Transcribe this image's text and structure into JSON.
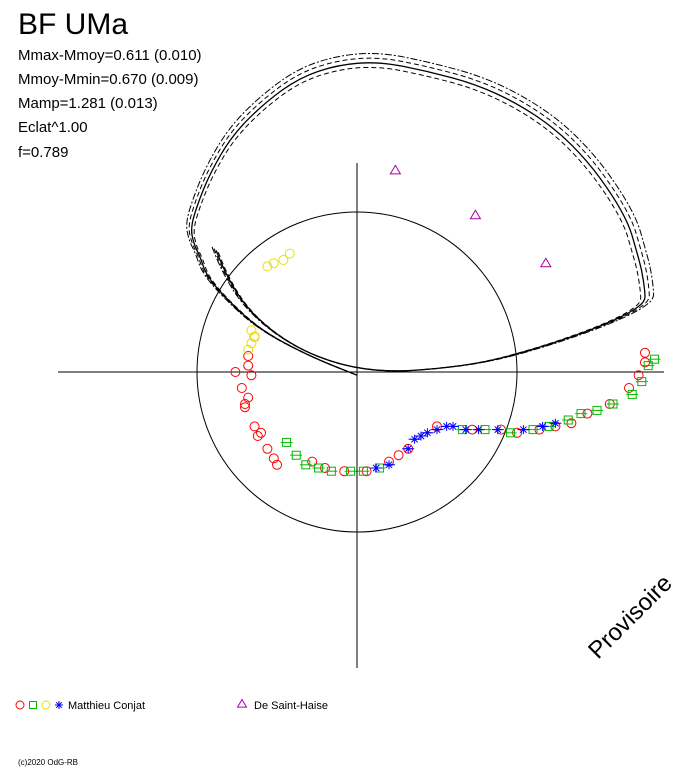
{
  "chart_data": {
    "type": "scatter",
    "title": "BF UMa",
    "stats": [
      "Mmax-Mmoy=0.611 (0.010)",
      "Mmoy-Mmin=0.670 (0.009)",
      "Mamp=1.281 (0.013)",
      "Eclat^1.00",
      "f=0.789"
    ],
    "watermark": "Provisoire",
    "copyright": "(c)2020 OdG-RB",
    "legend": [
      {
        "label": "Matthieu Conjat",
        "markers": [
          "circle",
          "square",
          "circle",
          "star"
        ],
        "colors": [
          "#ff0000",
          "#00bb00",
          "#e8e000",
          "#0000ff"
        ]
      },
      {
        "label": "De Saint-Haise",
        "markers": [
          "triangle"
        ],
        "colors": [
          "#aa00aa"
        ]
      }
    ],
    "reference_circle": {
      "radius": 0.5
    },
    "fit_curve": [
      [
        -0.44,
        0.38
      ],
      [
        -0.41,
        0.3
      ],
      [
        -0.33,
        0.18
      ],
      [
        -0.2,
        0.08
      ],
      [
        -0.05,
        0.02
      ],
      [
        0.1,
        0.0
      ],
      [
        0.25,
        0.01
      ],
      [
        0.4,
        0.03
      ],
      [
        0.55,
        0.07
      ],
      [
        0.7,
        0.12
      ],
      [
        0.8,
        0.16
      ],
      [
        0.86,
        0.19
      ],
      [
        0.9,
        0.22
      ],
      [
        0.9,
        0.25
      ],
      [
        0.89,
        0.32
      ],
      [
        0.87,
        0.39
      ],
      [
        0.85,
        0.46
      ],
      [
        0.8,
        0.55
      ],
      [
        0.72,
        0.66
      ],
      [
        0.62,
        0.76
      ],
      [
        0.5,
        0.84
      ],
      [
        0.37,
        0.9
      ],
      [
        0.22,
        0.94
      ],
      [
        0.07,
        0.97
      ],
      [
        -0.06,
        0.96
      ],
      [
        -0.18,
        0.92
      ],
      [
        -0.29,
        0.84
      ],
      [
        -0.39,
        0.74
      ],
      [
        -0.46,
        0.62
      ],
      [
        -0.5,
        0.52
      ],
      [
        -0.52,
        0.45
      ],
      [
        -0.51,
        0.4
      ],
      [
        -0.49,
        0.36
      ],
      [
        -0.47,
        0.3
      ],
      [
        -0.4,
        0.22
      ],
      [
        -0.3,
        0.13
      ],
      [
        -0.15,
        0.05
      ],
      [
        0.0,
        -0.01
      ]
    ],
    "series": [
      {
        "name": "Matthieu Conjat",
        "marker": "circle",
        "color": "#ff0000",
        "points": [
          [
            -0.35,
            -0.11
          ],
          [
            -0.32,
            -0.17
          ],
          [
            -0.28,
            -0.24
          ],
          [
            -0.26,
            -0.27
          ],
          [
            -0.3,
            -0.19
          ],
          [
            -0.34,
            -0.08
          ],
          [
            -0.36,
            -0.05
          ],
          [
            -0.38,
            0.0
          ],
          [
            -0.35,
            -0.1
          ],
          [
            -0.31,
            -0.2
          ],
          [
            -0.25,
            -0.29
          ],
          [
            -0.14,
            -0.28
          ],
          [
            -0.1,
            -0.3
          ],
          [
            -0.04,
            -0.31
          ],
          [
            0.03,
            -0.31
          ],
          [
            0.1,
            -0.28
          ],
          [
            0.13,
            -0.26
          ],
          [
            0.16,
            -0.24
          ],
          [
            0.25,
            -0.17
          ],
          [
            0.36,
            -0.18
          ],
          [
            0.45,
            -0.18
          ],
          [
            0.5,
            -0.19
          ],
          [
            0.57,
            -0.18
          ],
          [
            0.62,
            -0.17
          ],
          [
            0.67,
            -0.16
          ],
          [
            0.72,
            -0.13
          ],
          [
            0.79,
            -0.1
          ],
          [
            0.85,
            -0.05
          ],
          [
            0.88,
            -0.01
          ],
          [
            0.9,
            0.03
          ],
          [
            0.9,
            0.06
          ],
          [
            -0.32,
            0.11
          ],
          [
            -0.34,
            0.05
          ],
          [
            -0.34,
            0.02
          ],
          [
            -0.33,
            -0.01
          ]
        ]
      },
      {
        "name": "Matthieu Conjat (V)",
        "marker": "square",
        "color": "#00bb00",
        "points": [
          [
            -0.22,
            -0.22
          ],
          [
            -0.19,
            -0.26
          ],
          [
            -0.16,
            -0.29
          ],
          [
            -0.12,
            -0.3
          ],
          [
            -0.08,
            -0.31
          ],
          [
            -0.02,
            -0.31
          ],
          [
            0.02,
            -0.31
          ],
          [
            0.07,
            -0.3
          ],
          [
            0.33,
            -0.18
          ],
          [
            0.4,
            -0.18
          ],
          [
            0.48,
            -0.19
          ],
          [
            0.55,
            -0.18
          ],
          [
            0.6,
            -0.17
          ],
          [
            0.66,
            -0.15
          ],
          [
            0.7,
            -0.13
          ],
          [
            0.75,
            -0.12
          ],
          [
            0.8,
            -0.1
          ],
          [
            0.86,
            -0.07
          ],
          [
            0.89,
            -0.03
          ],
          [
            0.91,
            0.02
          ],
          [
            0.93,
            0.04
          ]
        ]
      },
      {
        "name": "Matthieu Conjat (R)",
        "marker": "circle",
        "color": "#e8e000",
        "points": [
          [
            -0.28,
            0.33
          ],
          [
            -0.26,
            0.34
          ],
          [
            -0.23,
            0.35
          ],
          [
            -0.21,
            0.37
          ],
          [
            -0.33,
            0.13
          ],
          [
            -0.33,
            0.09
          ],
          [
            -0.32,
            0.11
          ],
          [
            -0.34,
            0.07
          ]
        ]
      },
      {
        "name": "Matthieu Conjat (B)",
        "marker": "star",
        "color": "#0000ff",
        "points": [
          [
            0.06,
            -0.3
          ],
          [
            0.1,
            -0.29
          ],
          [
            0.16,
            -0.24
          ],
          [
            0.18,
            -0.21
          ],
          [
            0.2,
            -0.2
          ],
          [
            0.22,
            -0.19
          ],
          [
            0.25,
            -0.18
          ],
          [
            0.28,
            -0.17
          ],
          [
            0.3,
            -0.17
          ],
          [
            0.34,
            -0.18
          ],
          [
            0.38,
            -0.18
          ],
          [
            0.44,
            -0.18
          ],
          [
            0.52,
            -0.18
          ],
          [
            0.58,
            -0.17
          ],
          [
            0.62,
            -0.16
          ]
        ]
      },
      {
        "name": "De Saint-Haise",
        "marker": "triangle",
        "color": "#aa00aa",
        "points": [
          [
            0.12,
            0.63
          ],
          [
            0.37,
            0.49
          ],
          [
            0.59,
            0.34
          ]
        ]
      }
    ]
  }
}
